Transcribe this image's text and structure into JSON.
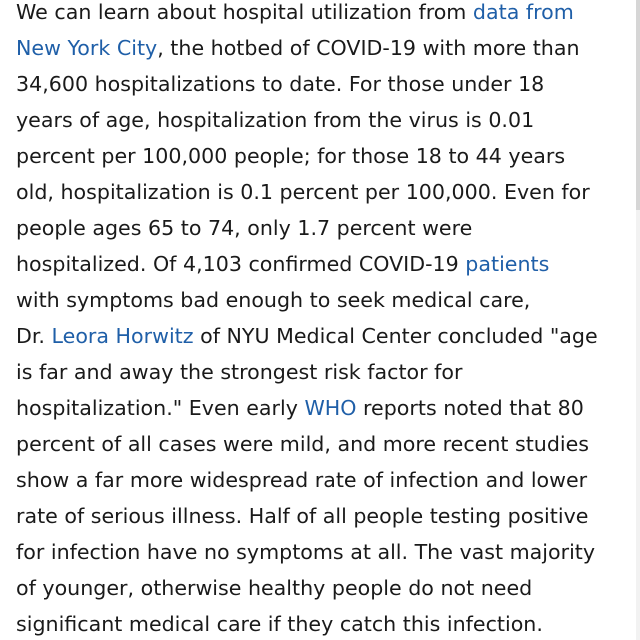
{
  "article": {
    "lines": [
      {
        "t1": "We can learn about hospital utilization from ",
        "link": "data from",
        "t2": ""
      },
      {
        "t1": "",
        "link": "New York City",
        "t2": ", the hotbed of COVID-19 with more than"
      },
      {
        "t1": "34,600 hospitalizations to date. For those under 18",
        "link": "",
        "t2": ""
      },
      {
        "t1": "years of age, hospitalization from the virus is 0.01",
        "link": "",
        "t2": ""
      },
      {
        "t1": "percent per 100,000 people; for those 18 to 44 years",
        "link": "",
        "t2": ""
      },
      {
        "t1": "old, hospitalization is 0.1 percent per 100,000. Even for",
        "link": "",
        "t2": ""
      },
      {
        "t1": "people ages 65 to 74, only 1.7 percent were",
        "link": "",
        "t2": ""
      },
      {
        "t1": "hospitalized. Of 4,103 confirmed COVID-19 ",
        "link": "patients",
        "t2": ""
      },
      {
        "t1": "with symptoms bad enough to seek medical care,",
        "link": "",
        "t2": ""
      },
      {
        "t1": "Dr. ",
        "link": "Leora Horwitz",
        "t2": " of NYU Medical Center concluded \"age"
      },
      {
        "t1": "is far and away the strongest risk factor for",
        "link": "",
        "t2": ""
      },
      {
        "t1": "hospitalization.\" Even early ",
        "link": "WHO",
        "t2": " reports noted that 80"
      },
      {
        "t1": "percent of all cases were mild, and more recent studies",
        "link": "",
        "t2": ""
      },
      {
        "t1": "show a far more widespread rate of infection and lower",
        "link": "",
        "t2": ""
      },
      {
        "t1": "rate of serious illness. Half of all people testing positive",
        "link": "",
        "t2": ""
      },
      {
        "t1": "for infection have no symptoms at all. The vast majority",
        "link": "",
        "t2": ""
      },
      {
        "t1": "of younger, otherwise healthy people do not need",
        "link": "",
        "t2": ""
      },
      {
        "t1": "significant medical care if they catch this infection.",
        "link": "",
        "t2": ""
      }
    ]
  },
  "colors": {
    "text": "#1a1a1a",
    "link": "#1f5fa8",
    "background": "#ffffff"
  }
}
